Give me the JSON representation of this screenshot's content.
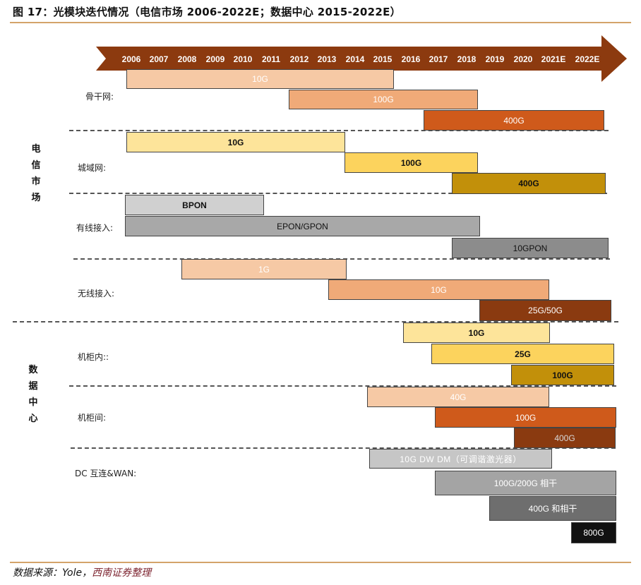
{
  "title": "图 17：光模块迭代情况（电信市场 2006-2022E；数据中心 2015-2022E）",
  "years": [
    "2006",
    "2007",
    "2008",
    "2009",
    "2010",
    "2011",
    "2012",
    "2013",
    "2014",
    "2015",
    "2016",
    "2017",
    "2018",
    "2019",
    "2020",
    "2021E",
    "2022E"
  ],
  "categories": {
    "telecom": [
      "电",
      "信",
      "市",
      "场"
    ],
    "datacenter": [
      "数",
      "据",
      "中",
      "心"
    ]
  },
  "row_labels": {
    "backbone": "骨干网:",
    "metro": "城域网:",
    "wired": "有线接入:",
    "wireless": "无线接入:",
    "intra_rack": "机柜内::",
    "inter_rack": "机柜间:",
    "dci": "DC 互连&WAN:"
  },
  "bars": {
    "backbone_10g": "10G",
    "backbone_100g": "100G",
    "backbone_400g": "400G",
    "metro_10g": "10G",
    "metro_100g": "100G",
    "metro_400g": "400G",
    "wired_bpon": "BPON",
    "wired_epon": "EPON/GPON",
    "wired_10gpon": "10GPON",
    "wireless_1g": "1G",
    "wireless_10g": "10G",
    "wireless_25g": "25G/50G",
    "intra_10g": "10G",
    "intra_25g": "25G",
    "intra_100g": "100G",
    "inter_40g": "40G",
    "inter_100g": "100G",
    "inter_400g": "400G",
    "dci_10g": "10G DW DM（可调谐激光器）",
    "dci_100g": "100G/200G 相干",
    "dci_400g": "400G 和相干",
    "dci_800g": "800G"
  },
  "source": {
    "prefix": "数据来源：Yole，",
    "org": "西南证券整理"
  },
  "colors": {
    "arrow": "#8c3a0f",
    "rule": "#d4a36a",
    "peach_light": "#f6c9a5",
    "peach": "#f0aa78",
    "orange": "#cf5a1b",
    "brown": "#8a3a10",
    "yellow_light": "#fde49a",
    "yellow": "#fcd35d",
    "gold": "#c2900a",
    "gray_light": "#d0d0d0",
    "gray": "#a8a8a8",
    "gray_mid": "#8c8c8c",
    "gray_dark": "#6e6e6e",
    "black": "#111111"
  }
}
